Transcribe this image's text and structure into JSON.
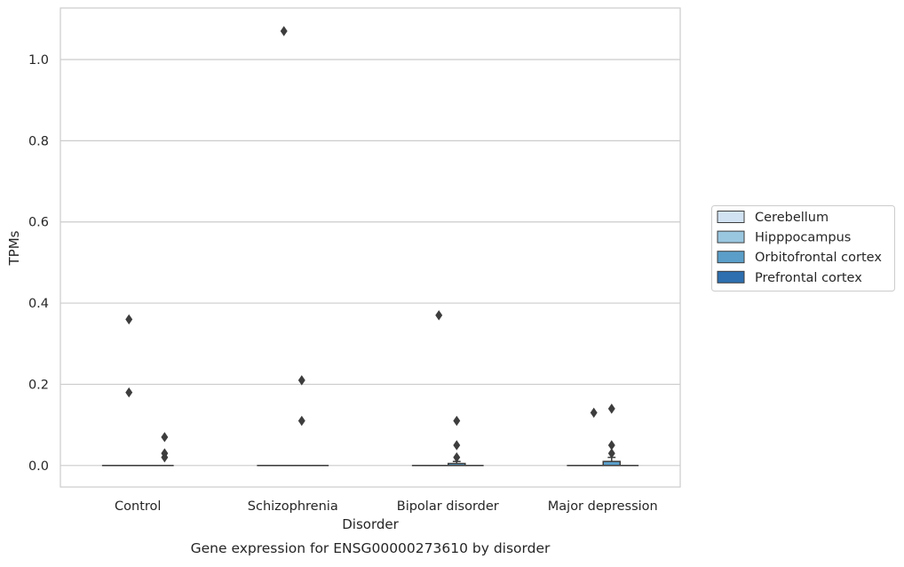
{
  "chart_data": {
    "type": "box",
    "title": "Gene expression for ENSG00000273610 by disorder",
    "xlabel": "Disorder",
    "ylabel": "TPMs",
    "categories": [
      "Control",
      "Schizophrenia",
      "Bipolar disorder",
      "Major depression"
    ],
    "ylim": [
      -0.053,
      1.127
    ],
    "yticks": [
      0.0,
      0.2,
      0.4,
      0.6,
      0.8,
      1.0
    ],
    "ytick_labels": [
      "0.0",
      "0.2",
      "0.4",
      "0.6",
      "0.8",
      "1.0"
    ],
    "grid": true,
    "legend_position": "right",
    "series": [
      {
        "name": "Cerebellum",
        "color": "#d1e2f2",
        "boxes": [
          {
            "q1": 0,
            "median": 0,
            "q3": 0,
            "whisker_low": 0,
            "whisker_high": 0,
            "outliers": []
          },
          {
            "q1": 0,
            "median": 0,
            "q3": 0,
            "whisker_low": 0,
            "whisker_high": 0,
            "outliers": []
          },
          {
            "q1": 0,
            "median": 0,
            "q3": 0,
            "whisker_low": 0,
            "whisker_high": 0,
            "outliers": []
          },
          {
            "q1": 0,
            "median": 0,
            "q3": 0,
            "whisker_low": 0,
            "whisker_high": 0,
            "outliers": []
          }
        ]
      },
      {
        "name": "Hipppocampus",
        "color": "#9ac7e0",
        "boxes": [
          {
            "q1": 0,
            "median": 0,
            "q3": 0,
            "whisker_low": 0,
            "whisker_high": 0,
            "outliers": [
              0.36,
              0.18
            ]
          },
          {
            "q1": 0,
            "median": 0,
            "q3": 0,
            "whisker_low": 0,
            "whisker_high": 0,
            "outliers": [
              1.07
            ]
          },
          {
            "q1": 0,
            "median": 0,
            "q3": 0,
            "whisker_low": 0,
            "whisker_high": 0,
            "outliers": [
              0.37
            ]
          },
          {
            "q1": 0,
            "median": 0,
            "q3": 0,
            "whisker_low": 0,
            "whisker_high": 0,
            "outliers": [
              0.13
            ]
          }
        ]
      },
      {
        "name": "Orbitofrontal cortex",
        "color": "#5a9ec9",
        "boxes": [
          {
            "q1": 0,
            "median": 0,
            "q3": 0,
            "whisker_low": 0,
            "whisker_high": 0,
            "outliers": []
          },
          {
            "q1": 0,
            "median": 0,
            "q3": 0,
            "whisker_low": 0,
            "whisker_high": 0,
            "outliers": [
              0.21,
              0.11
            ]
          },
          {
            "q1": 0,
            "median": 0,
            "q3": 0.005,
            "whisker_low": 0,
            "whisker_high": 0.01,
            "outliers": [
              0.11,
              0.05,
              0.02
            ]
          },
          {
            "q1": 0,
            "median": 0,
            "q3": 0.01,
            "whisker_low": 0,
            "whisker_high": 0.02,
            "outliers": [
              0.14,
              0.05,
              0.03
            ]
          }
        ]
      },
      {
        "name": "Prefrontal cortex",
        "color": "#2d6faf",
        "boxes": [
          {
            "q1": 0,
            "median": 0,
            "q3": 0,
            "whisker_low": 0,
            "whisker_high": 0,
            "outliers": [
              0.07,
              0.03,
              0.02
            ]
          },
          {
            "q1": 0,
            "median": 0,
            "q3": 0,
            "whisker_low": 0,
            "whisker_high": 0,
            "outliers": []
          },
          {
            "q1": 0,
            "median": 0,
            "q3": 0,
            "whisker_low": 0,
            "whisker_high": 0,
            "outliers": []
          },
          {
            "q1": 0,
            "median": 0,
            "q3": 0,
            "whisker_low": 0,
            "whisker_high": 0,
            "outliers": []
          }
        ]
      }
    ]
  }
}
